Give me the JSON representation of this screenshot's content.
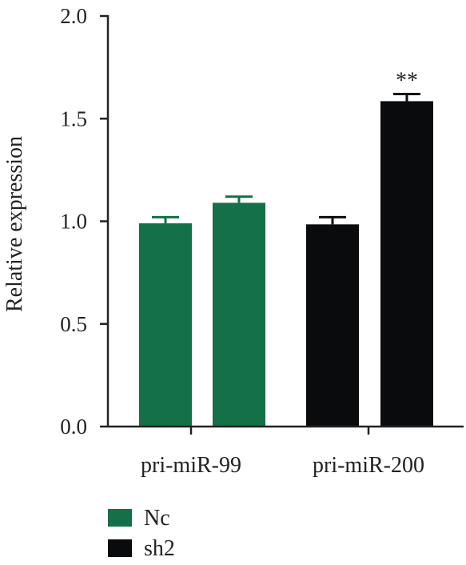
{
  "chart_data": {
    "type": "bar",
    "title": "",
    "xlabel": "",
    "ylabel": "Relative expression",
    "ylim": [
      0,
      2.0
    ],
    "yticks": [
      0.0,
      0.5,
      1.0,
      1.5,
      2.0
    ],
    "ytick_labels": [
      "0.0",
      "0.5",
      "1.0",
      "1.5",
      "2.0"
    ],
    "categories": [
      "pri-miR-99",
      "pri-miR-200"
    ],
    "bars": [
      {
        "category": "pri-miR-99",
        "value": 0.99,
        "error": 0.03,
        "color": "#137047",
        "annotation": ""
      },
      {
        "category": "pri-miR-99",
        "value": 1.09,
        "error": 0.03,
        "color": "#137047",
        "annotation": ""
      },
      {
        "category": "pri-miR-200",
        "value": 0.985,
        "error": 0.035,
        "color": "#0a0b0d",
        "annotation": ""
      },
      {
        "category": "pri-miR-200",
        "value": 1.585,
        "error": 0.035,
        "color": "#0a0b0d",
        "annotation": "**"
      }
    ],
    "legend": {
      "placement": "bottom-left",
      "entries": [
        {
          "label": "Nc",
          "color": "#137047"
        },
        {
          "label": "sh2",
          "color": "#0a0b0d"
        }
      ]
    },
    "grid": false
  }
}
